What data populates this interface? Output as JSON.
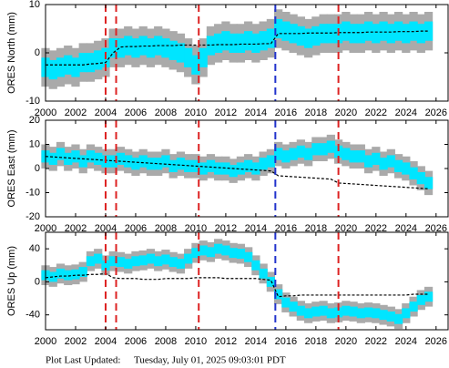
{
  "chart_data": [
    {
      "type": "scatter",
      "ylabel": "ORES North (mm)",
      "xlim": [
        2000,
        2026.8
      ],
      "xticks": [
        2000,
        2002,
        2004,
        2006,
        2008,
        2010,
        2012,
        2014,
        2016,
        2018,
        2020,
        2022,
        2024,
        2026
      ],
      "ylim": [
        -10,
        10
      ],
      "yticks": [
        -10,
        0,
        10
      ],
      "x": [
        2000,
        2000.5,
        2001,
        2001.5,
        2002,
        2002.5,
        2003,
        2003.5,
        2004,
        2004.5,
        2005,
        2005.5,
        2006,
        2006.5,
        2007,
        2007.5,
        2008,
        2008.5,
        2009,
        2009.5,
        2010,
        2010.5,
        2011,
        2011.5,
        2012,
        2012.5,
        2013,
        2013.5,
        2014,
        2014.5,
        2015,
        2015.5,
        2016,
        2016.5,
        2017,
        2017.5,
        2018,
        2018.5,
        2019,
        2019.5,
        2020,
        2020.5,
        2021,
        2021.5,
        2022,
        2022.5,
        2023,
        2023.5,
        2024,
        2024.5,
        2025,
        2025.5
      ],
      "series": [
        {
          "color": "#00e5ff",
          "error_color": "#aaaaaa",
          "error": 4,
          "values": [
            -3,
            -3.5,
            -3,
            -2.5,
            -3,
            -2,
            -2,
            -1.5,
            -1,
            1,
            1,
            1.5,
            1,
            1.5,
            1,
            1.5,
            1,
            0.5,
            0,
            -1,
            -2.5,
            -1,
            1.5,
            2,
            2.5,
            2,
            2,
            2.5,
            2,
            2.5,
            3,
            5,
            4.5,
            4,
            3.5,
            3,
            3.5,
            4,
            4,
            4,
            4.5,
            4,
            4,
            4.5,
            4,
            4.5,
            4,
            4.5,
            4,
            4.5,
            4,
            4.5
          ]
        },
        {
          "color": "#000000",
          "style": "dashed",
          "values": [
            -2.5,
            -2.5,
            -2.5,
            -2.5,
            -2.5,
            -2.5,
            -2.3,
            -2.2,
            -2,
            0,
            1.2,
            1.3,
            1.3,
            1.4,
            1.4,
            1.5,
            1.5,
            1.5,
            1.6,
            1.6,
            1.6,
            1.6,
            1.6,
            1.7,
            1.7,
            1.7,
            1.8,
            1.8,
            1.8,
            1.9,
            1.9,
            4,
            4,
            4,
            4,
            4.1,
            4.1,
            4.1,
            4.1,
            4.2,
            4.2,
            4.2,
            4.2,
            4.3,
            4.3,
            4.3,
            4.3,
            4.4,
            4.4,
            4.4,
            4.5,
            4.5
          ]
        }
      ],
      "vlines": [
        {
          "x": 2004.0,
          "color": "#dd2222"
        },
        {
          "x": 2004.7,
          "color": "#dd2222"
        },
        {
          "x": 2010.2,
          "color": "#dd2222"
        },
        {
          "x": 2015.3,
          "color": "#2233cc"
        },
        {
          "x": 2019.5,
          "color": "#dd2222"
        }
      ]
    },
    {
      "type": "scatter",
      "ylabel": "ORES East (mm)",
      "xlim": [
        2000,
        2026.8
      ],
      "xticks": [
        2000,
        2002,
        2004,
        2006,
        2008,
        2010,
        2012,
        2014,
        2016,
        2018,
        2020,
        2022,
        2024,
        2026
      ],
      "ylim": [
        -20,
        20
      ],
      "yticks": [
        -20,
        -10,
        0,
        10,
        20
      ],
      "x": [
        2000,
        2000.5,
        2001,
        2001.5,
        2002,
        2002.5,
        2003,
        2003.5,
        2004,
        2004.5,
        2005,
        2005.5,
        2006,
        2006.5,
        2007,
        2007.5,
        2008,
        2008.5,
        2009,
        2009.5,
        2010,
        2010.5,
        2011,
        2011.5,
        2012,
        2012.5,
        2013,
        2013.5,
        2014,
        2014.5,
        2015,
        2015.5,
        2016,
        2016.5,
        2017,
        2017.5,
        2018,
        2018.5,
        2019,
        2019.5,
        2020,
        2020.5,
        2021,
        2021.5,
        2022,
        2022.5,
        2023,
        2023.5,
        2024,
        2024.5,
        2025,
        2025.5
      ],
      "series": [
        {
          "color": "#00e5ff",
          "error_color": "#aaaaaa",
          "error": 5,
          "values": [
            5,
            4,
            6,
            4,
            5,
            3,
            5,
            4,
            3,
            3,
            4,
            3,
            2,
            3,
            2,
            2,
            3,
            1,
            2,
            1,
            1,
            0,
            1,
            0,
            0,
            -1,
            0,
            1,
            0,
            2,
            3,
            6,
            5,
            6,
            7,
            6,
            8,
            8,
            9,
            7,
            6,
            5,
            5,
            3,
            4,
            2,
            3,
            1,
            0,
            -2,
            -4,
            -6
          ]
        },
        {
          "color": "#000000",
          "style": "dashed",
          "values": [
            5,
            4.8,
            4.6,
            4.4,
            4.2,
            4,
            3.8,
            3.6,
            3.4,
            3.2,
            3,
            2.8,
            2.6,
            2.4,
            2.2,
            2,
            1.8,
            1.6,
            1.4,
            1.2,
            1,
            0.8,
            0.6,
            0.4,
            0.2,
            0,
            -0.2,
            -0.4,
            -0.6,
            -0.8,
            -1,
            -3,
            -3.2,
            -3.4,
            -3.6,
            -3.8,
            -4,
            -4.2,
            -4.4,
            -6,
            -6.2,
            -6.4,
            -6.6,
            -6.8,
            -7,
            -7.2,
            -7.4,
            -7.6,
            -7.8,
            -8,
            -8.2,
            -8.4
          ]
        }
      ],
      "vlines": [
        {
          "x": 2004.0,
          "color": "#dd2222"
        },
        {
          "x": 2004.7,
          "color": "#dd2222"
        },
        {
          "x": 2010.2,
          "color": "#dd2222"
        },
        {
          "x": 2015.3,
          "color": "#2233cc"
        },
        {
          "x": 2019.5,
          "color": "#dd2222"
        }
      ]
    },
    {
      "type": "scatter",
      "ylabel": "ORES Up (mm)",
      "xlim": [
        2000,
        2026.8
      ],
      "xticks": [
        2000,
        2002,
        2004,
        2006,
        2008,
        2010,
        2012,
        2014,
        2016,
        2018,
        2020,
        2022,
        2024,
        2026
      ],
      "ylim": [
        -58,
        60
      ],
      "yticks": [
        -40,
        0,
        40
      ],
      "x": [
        2000,
        2000.5,
        2001,
        2001.5,
        2002,
        2002.5,
        2003,
        2003.5,
        2004,
        2004.5,
        2005,
        2005.5,
        2006,
        2006.5,
        2007,
        2007.5,
        2008,
        2008.5,
        2009,
        2009.5,
        2010,
        2010.5,
        2011,
        2011.5,
        2012,
        2012.5,
        2013,
        2013.5,
        2014,
        2014.5,
        2015,
        2015.5,
        2016,
        2016.5,
        2017,
        2017.5,
        2018,
        2018.5,
        2019,
        2019.5,
        2020,
        2020.5,
        2021,
        2021.5,
        2022,
        2022.5,
        2023,
        2023.5,
        2024,
        2024.5,
        2025,
        2025.5
      ],
      "series": [
        {
          "color": "#00e5ff",
          "error_color": "#aaaaaa",
          "error": 12,
          "values": [
            8,
            6,
            10,
            8,
            9,
            12,
            25,
            28,
            20,
            25,
            24,
            22,
            25,
            26,
            28,
            25,
            27,
            24,
            22,
            28,
            35,
            38,
            36,
            40,
            38,
            35,
            34,
            30,
            20,
            10,
            0,
            -15,
            -25,
            -30,
            -35,
            -38,
            -36,
            -35,
            -38,
            -37,
            -35,
            -36,
            -38,
            -37,
            -38,
            -40,
            -42,
            -45,
            -38,
            -30,
            -22,
            -18
          ]
        },
        {
          "color": "#000000",
          "style": "dashed",
          "values": [
            5,
            6,
            7,
            7,
            8,
            8,
            9,
            9,
            10,
            5,
            4,
            4,
            4,
            3,
            3,
            3,
            4,
            4,
            4,
            4,
            5,
            5,
            5,
            5,
            4,
            4,
            4,
            4,
            4,
            3,
            2,
            -18,
            -17,
            -17,
            -16,
            -16,
            -16,
            -16,
            -16,
            -16,
            -16,
            -16,
            -16,
            -16,
            -16,
            -16,
            -16,
            -16,
            -16,
            -15,
            -15,
            -15
          ]
        }
      ],
      "vlines": [
        {
          "x": 2004.0,
          "color": "#dd2222"
        },
        {
          "x": 2004.7,
          "color": "#dd2222"
        },
        {
          "x": 2010.2,
          "color": "#dd2222"
        },
        {
          "x": 2015.3,
          "color": "#2233cc"
        },
        {
          "x": 2019.5,
          "color": "#dd2222"
        }
      ]
    }
  ],
  "footer": {
    "label": "Plot Last Updated:",
    "date": "Tuesday, July 01, 2025 09:03:01 PDT"
  }
}
